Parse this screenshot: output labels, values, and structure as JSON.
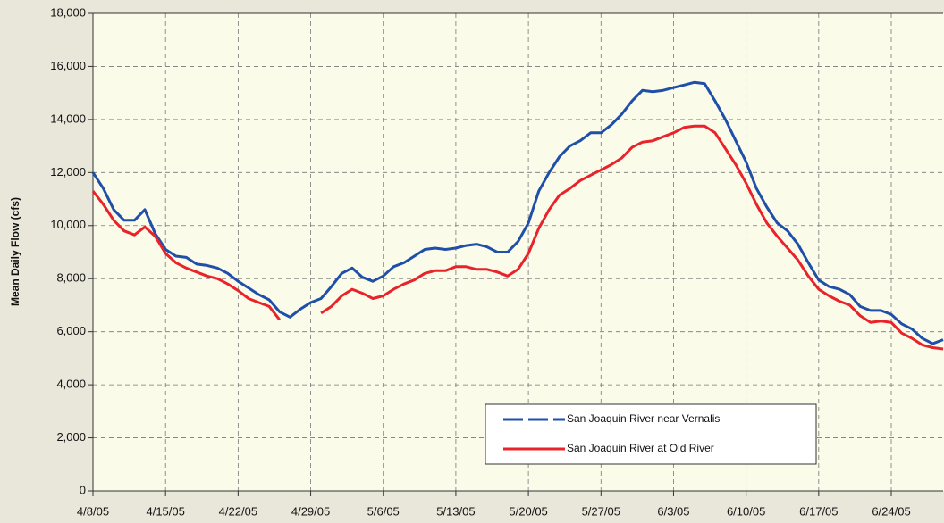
{
  "chart_data": {
    "type": "line",
    "y_label": "Mean Daily Flow (cfs)",
    "x": [
      "4/8/05",
      "4/9/05",
      "4/10/05",
      "4/11/05",
      "4/12/05",
      "4/13/05",
      "4/14/05",
      "4/15/05",
      "4/16/05",
      "4/17/05",
      "4/18/05",
      "4/19/05",
      "4/20/05",
      "4/21/05",
      "4/22/05",
      "4/23/05",
      "4/24/05",
      "4/25/05",
      "4/26/05",
      "4/27/05",
      "4/28/05",
      "4/29/05",
      "4/30/05",
      "5/1/05",
      "5/2/05",
      "5/3/05",
      "5/4/05",
      "5/5/05",
      "5/6/05",
      "5/7/05",
      "5/8/05",
      "5/9/05",
      "5/10/05",
      "5/11/05",
      "5/12/05",
      "5/13/05",
      "5/14/05",
      "5/15/05",
      "5/16/05",
      "5/17/05",
      "5/18/05",
      "5/19/05",
      "5/20/05",
      "5/21/05",
      "5/22/05",
      "5/23/05",
      "5/24/05",
      "5/25/05",
      "5/26/05",
      "5/27/05",
      "5/28/05",
      "5/29/05",
      "5/30/05",
      "5/31/05",
      "6/1/05",
      "6/2/05",
      "6/3/05",
      "6/4/05",
      "6/5/05",
      "6/6/05",
      "6/7/05",
      "6/8/05",
      "6/9/05",
      "6/10/05",
      "6/11/05",
      "6/12/05",
      "6/13/05",
      "6/14/05",
      "6/15/05",
      "6/16/05",
      "6/17/05",
      "6/18/05",
      "6/19/05",
      "6/20/05",
      "6/21/05",
      "6/22/05",
      "6/23/05",
      "6/24/05",
      "6/25/05",
      "6/26/05",
      "6/27/05",
      "6/28/05",
      "6/29/05"
    ],
    "xticks": [
      "4/8/05",
      "4/15/05",
      "4/22/05",
      "4/29/05",
      "5/6/05",
      "5/13/05",
      "5/20/05",
      "5/27/05",
      "6/3/05",
      "6/10/05",
      "6/17/05",
      "6/24/05"
    ],
    "series": [
      {
        "name": "San Joaquin River near Vernalis",
        "color": "#1f4fa8",
        "values": [
          12000,
          11400,
          10600,
          10200,
          10200,
          10600,
          9700,
          9100,
          8850,
          8800,
          8550,
          8500,
          8400,
          8200,
          7900,
          7650,
          7400,
          7200,
          6750,
          6550,
          6850,
          7100,
          7250,
          7700,
          8200,
          8400,
          8050,
          7900,
          8100,
          8450,
          8600,
          8850,
          9100,
          9150,
          9100,
          9150,
          9250,
          9300,
          9200,
          9000,
          9000,
          9400,
          10100,
          11300,
          12000,
          12600,
          13000,
          13200,
          13500,
          13500,
          13800,
          14200,
          14700,
          15100,
          15050,
          15100,
          15200,
          15300,
          15400,
          15350,
          14700,
          14000,
          13200,
          12400,
          11400,
          10700,
          10100,
          9800,
          9300,
          8600,
          7950,
          7700,
          7600,
          7400,
          6950,
          6800,
          6800,
          6650,
          6300,
          6100,
          5750,
          5550,
          5700
        ]
      },
      {
        "name": "San Joaquin River at Old River",
        "color": "#e8232a",
        "values": [
          11300,
          10800,
          10200,
          9800,
          9650,
          9950,
          9600,
          8950,
          8600,
          8400,
          8250,
          8100,
          8000,
          7800,
          7550,
          7250,
          7100,
          6950,
          6450,
          null,
          null,
          null,
          6700,
          6950,
          7350,
          7600,
          7450,
          7250,
          7350,
          7600,
          7800,
          7950,
          8200,
          8300,
          8300,
          8450,
          8450,
          8350,
          8350,
          8250,
          8100,
          8350,
          8950,
          9900,
          10600,
          11150,
          11400,
          11700,
          11900,
          12100,
          12300,
          12550,
          12950,
          13150,
          13200,
          13350,
          13500,
          13700,
          13750,
          13750,
          13500,
          12900,
          12300,
          11600,
          10800,
          10100,
          9600,
          9150,
          8700,
          8100,
          7600,
          7350,
          7150,
          7000,
          6600,
          6350,
          6400,
          6350,
          5950,
          5750,
          5500,
          5400,
          5350
        ]
      }
    ],
    "ylim": [
      0,
      18000
    ],
    "yticks": [
      0,
      {
        "value": 2000,
        "label": "2,000"
      },
      {
        "value": 4000,
        "label": "4,000"
      },
      {
        "value": 6000,
        "label": "6,000"
      },
      {
        "value": 8000,
        "label": "8,000"
      },
      {
        "value": 10000,
        "label": "10,000"
      },
      {
        "value": 12000,
        "label": "12,000"
      },
      {
        "value": 14000,
        "label": "14,000"
      },
      {
        "value": 16000,
        "label": "16,000"
      },
      {
        "value": 18000,
        "label": "18,000"
      }
    ],
    "grid": true
  }
}
